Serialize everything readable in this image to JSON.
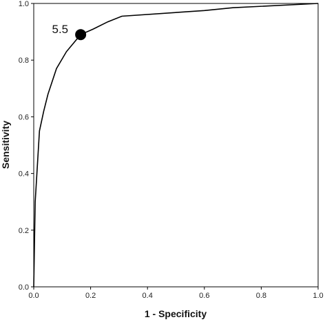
{
  "chart_data": {
    "type": "line",
    "xlabel": "1 - Specificity",
    "ylabel": "Sensitivity",
    "xlim": [
      0.0,
      1.0
    ],
    "ylim": [
      0.0,
      1.0
    ],
    "x_ticks": [
      "0.0",
      "0.2",
      "0.4",
      "0.6",
      "0.8",
      "1.0"
    ],
    "y_ticks": [
      "0.0",
      "0.2",
      "0.4",
      "0.6",
      "0.8",
      "1.0"
    ],
    "grid": false,
    "line_color": "#000000",
    "marker_color": "#000000",
    "series": [
      {
        "x": [
          0.0,
          0.005,
          0.01,
          0.02,
          0.035,
          0.05,
          0.08,
          0.115,
          0.165,
          0.21,
          0.26,
          0.31,
          0.6,
          0.7,
          1.0
        ],
        "y": [
          0.0,
          0.3,
          0.38,
          0.55,
          0.62,
          0.68,
          0.77,
          0.83,
          0.89,
          0.91,
          0.935,
          0.955,
          0.975,
          0.985,
          1.0
        ]
      }
    ],
    "annotations": [
      {
        "text": "5.5",
        "x": 0.165,
        "y": 0.89
      }
    ]
  }
}
